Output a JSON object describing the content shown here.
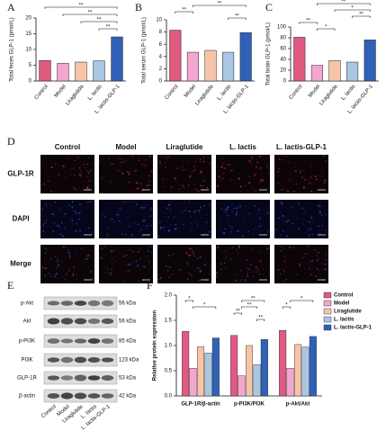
{
  "panel_labels": [
    "A",
    "B",
    "C",
    "D",
    "E",
    "F"
  ],
  "chart_data": [
    {
      "type": "bar",
      "y_label": "Total feces GLP-1 (pmol/L)",
      "categories": [
        "Control",
        "Model",
        "Liraglutide",
        "L. lactis",
        "L. lactis-GLP-1"
      ],
      "values": [
        6.5,
        5.6,
        6.0,
        6.4,
        14.0
      ],
      "colors": [
        "#e05a82",
        "#f3a6cf",
        "#f7c4a8",
        "#a9c6e3",
        "#2f62b6"
      ],
      "ylim": [
        0,
        20
      ],
      "yticks": [
        0,
        5,
        10,
        15,
        20
      ],
      "significance": [
        {
          "text": "**",
          "pair": [
            "Control",
            "L. lactis-GLP-1"
          ]
        },
        {
          "text": "**",
          "pair": [
            "Model",
            "L. lactis-GLP-1"
          ]
        },
        {
          "text": "**",
          "pair": [
            "Liraglutide",
            "L. lactis-GLP-1"
          ]
        },
        {
          "text": "**",
          "pair": [
            "L. lactis",
            "L. lactis-GLP-1"
          ]
        }
      ]
    },
    {
      "type": "bar",
      "y_label": "Total serum GLP-1 (pmol/L)",
      "categories": [
        "Control",
        "Model",
        "Liraglutide",
        "L. lactis",
        "L. lactis-GLP-1"
      ],
      "values": [
        8.3,
        4.7,
        5.0,
        4.7,
        7.9
      ],
      "colors": [
        "#e05a82",
        "#f3a6cf",
        "#f7c4a8",
        "#a9c6e3",
        "#2f62b6"
      ],
      "ylim": [
        0,
        10
      ],
      "yticks": [
        0,
        2,
        4,
        6,
        8,
        10
      ],
      "significance": [
        {
          "text": "**",
          "pair": [
            "Model",
            "L. lactis-GLP-1"
          ]
        },
        {
          "text": "**",
          "pair": [
            "Control",
            "Model"
          ]
        },
        {
          "text": "**",
          "pair": [
            "L. lactis",
            "L. lactis-GLP-1"
          ]
        }
      ]
    },
    {
      "type": "bar",
      "y_label": "Total brain GLP-1 (pmol/L)",
      "categories": [
        "Control",
        "Model",
        "Liraglutide",
        "L. lactis",
        "L. lactis-GLP-1"
      ],
      "values": [
        81,
        29,
        38,
        35,
        76
      ],
      "colors": [
        "#e05a82",
        "#f3a6cf",
        "#f7c4a8",
        "#a9c6e3",
        "#2f62b6"
      ],
      "ylim": [
        0,
        100
      ],
      "yticks": [
        0,
        20,
        40,
        60,
        80,
        100
      ],
      "significance": [
        {
          "text": "**",
          "pair": [
            "Model",
            "L. lactis-GLP-1"
          ]
        },
        {
          "text": "*",
          "pair": [
            "Liraglutide",
            "L. lactis-GLP-1"
          ]
        },
        {
          "text": "**",
          "pair": [
            "L. lactis",
            "L. lactis-GLP-1"
          ]
        },
        {
          "text": "**",
          "pair": [
            "Control",
            "Model"
          ]
        },
        {
          "text": "*",
          "pair": [
            "Model",
            "Liraglutide"
          ]
        }
      ]
    },
    {
      "type": "grouped_bar",
      "y_label": "Relative protein expression",
      "categories": [
        "GLP-1R/β-actin",
        "p-PI3K/PI3K",
        "p-Akt/Akt"
      ],
      "series": [
        {
          "name": "Control",
          "color": "#e05a82",
          "values": [
            1.28,
            1.2,
            1.3
          ]
        },
        {
          "name": "Model",
          "color": "#f3a6cf",
          "values": [
            0.55,
            0.4,
            0.55
          ]
        },
        {
          "name": "Liraglutide",
          "color": "#f7c4a8",
          "values": [
            0.98,
            1.0,
            1.02
          ]
        },
        {
          "name": "L. lactis",
          "color": "#a9c6e3",
          "values": [
            0.85,
            0.62,
            0.97
          ]
        },
        {
          "name": "L. lactis-GLP-1",
          "color": "#2f62b6",
          "values": [
            1.15,
            1.12,
            1.18
          ]
        }
      ],
      "ylim": [
        0,
        2
      ],
      "yticks": [
        {
          "value": 0,
          "label": "0.0"
        },
        0.5,
        {
          "value": 1,
          "label": "1.0"
        },
        1.5,
        {
          "value": 2,
          "label": "2.0"
        }
      ],
      "legend": "upper-right",
      "significance": [
        {
          "text": "*",
          "category": "GLP-1R/β-actin",
          "pair": [
            "Control",
            "Model"
          ]
        },
        {
          "text": "*",
          "category": "GLP-1R/β-actin",
          "pair": [
            "Model",
            "L. lactis-GLP-1"
          ]
        },
        {
          "text": "**",
          "category": "p-PI3K/PI3K",
          "pair": [
            "Model",
            "L. lactis-GLP-1"
          ]
        },
        {
          "text": "**",
          "category": "p-PI3K/PI3K",
          "pair": [
            "Model",
            "L. lactis"
          ]
        },
        {
          "text": "**",
          "category": "p-PI3K/PI3K",
          "pair": [
            "Control",
            "Model"
          ]
        },
        {
          "text": "**",
          "category": "p-PI3K/PI3K",
          "pair": [
            "L. lactis",
            "L. lactis-GLP-1"
          ]
        },
        {
          "text": "*",
          "category": "p-Akt/Akt",
          "pair": [
            "Model",
            "L. lactis-GLP-1"
          ]
        },
        {
          "text": "*",
          "category": "p-Akt/Akt",
          "pair": [
            "Control",
            "Model"
          ]
        }
      ]
    }
  ],
  "immunofluorescence": {
    "columns": [
      "Control",
      "Model",
      "Liraglutide",
      "L. lactis",
      "L. lactis-GLP-1"
    ],
    "rows": [
      "GLP-1R",
      "DAPI",
      "Merge"
    ]
  },
  "western_blot": {
    "proteins": [
      {
        "name": "p-Akt",
        "size": "56 kDa"
      },
      {
        "name": "Akt",
        "size": "56 kDa"
      },
      {
        "name": "p-PI3K",
        "size": "85 kDa"
      },
      {
        "name": "PI3K",
        "size": "123 kDa"
      },
      {
        "name": "GLP-1R",
        "size": "53 kDa"
      },
      {
        "name": "β-actin",
        "size": "42 kDa"
      }
    ],
    "lanes": [
      "Control",
      "Model",
      "Liraglutide",
      "L. lactis",
      "L. lactis-GLP-1"
    ]
  }
}
